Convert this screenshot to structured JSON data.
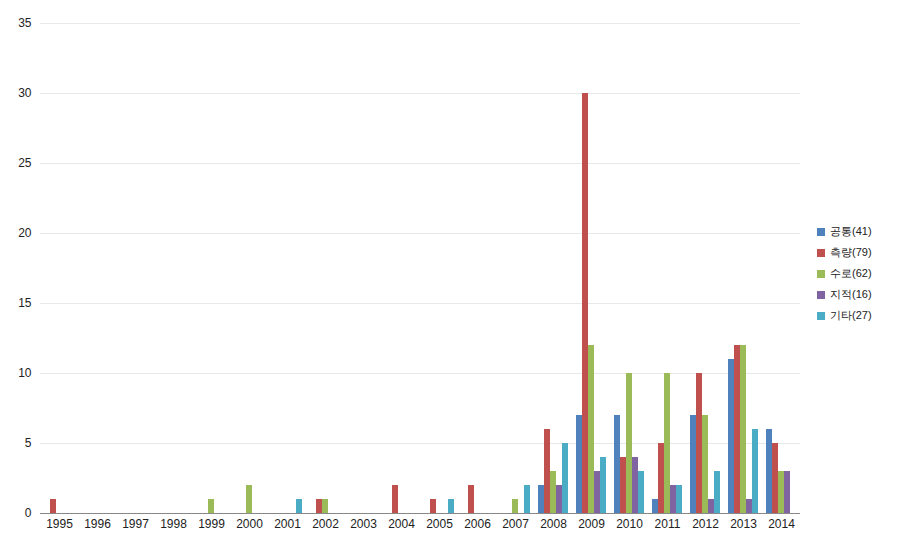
{
  "chart_data": {
    "type": "bar",
    "categories": [
      "1995",
      "1996",
      "1997",
      "1998",
      "1999",
      "2000",
      "2001",
      "2002",
      "2003",
      "2004",
      "2005",
      "2006",
      "2007",
      "2008",
      "2009",
      "2010",
      "2011",
      "2012",
      "2013",
      "2014"
    ],
    "series": [
      {
        "name": "공통(41)",
        "color": "#4f81bd",
        "values": [
          0,
          0,
          0,
          0,
          0,
          0,
          0,
          0,
          0,
          0,
          0,
          0,
          0,
          2,
          7,
          7,
          1,
          7,
          11,
          6
        ]
      },
      {
        "name": "측량(79)",
        "color": "#c0504d",
        "values": [
          1,
          0,
          0,
          0,
          0,
          0,
          0,
          1,
          0,
          2,
          1,
          2,
          0,
          6,
          30,
          4,
          5,
          10,
          12,
          5
        ]
      },
      {
        "name": "수로(62)",
        "color": "#9bbb59",
        "values": [
          0,
          0,
          0,
          0,
          1,
          2,
          0,
          1,
          0,
          0,
          0,
          0,
          1,
          3,
          12,
          10,
          10,
          7,
          12,
          3
        ]
      },
      {
        "name": "지적(16)",
        "color": "#8064a2",
        "values": [
          0,
          0,
          0,
          0,
          0,
          0,
          0,
          0,
          0,
          0,
          0,
          0,
          0,
          2,
          3,
          4,
          2,
          1,
          1,
          3
        ]
      },
      {
        "name": "기타(27)",
        "color": "#4bacc6",
        "values": [
          0,
          0,
          0,
          0,
          0,
          0,
          1,
          0,
          0,
          0,
          1,
          0,
          2,
          5,
          4,
          3,
          2,
          3,
          6,
          0
        ]
      }
    ],
    "ylim": [
      0,
      35
    ],
    "yticks": [
      0,
      5,
      10,
      15,
      20,
      25,
      30,
      35
    ],
    "grid": true,
    "legend": "right"
  }
}
